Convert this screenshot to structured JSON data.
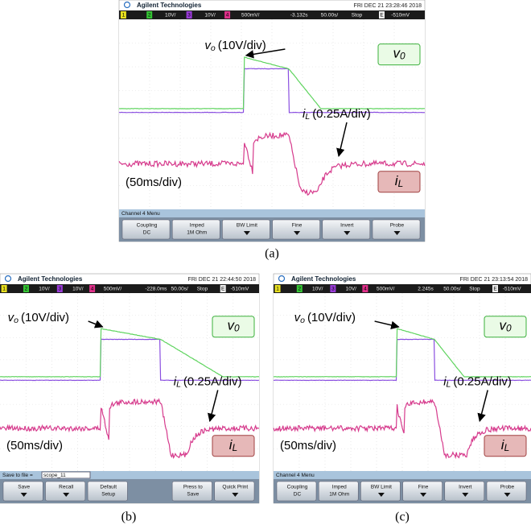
{
  "figure": {
    "panels": [
      {
        "caption": "(a)",
        "brand": "Agilent Technologies",
        "datetime": "FRI DEC 21 23:28:46 2018",
        "status": [
          "1",
          "2",
          "10V/",
          "3",
          "10V/",
          "4",
          "500mV/",
          "-3.132s",
          "50.00s/",
          "Stop",
          "E",
          "-510mV"
        ],
        "vo_label": {
          "symbol": "v",
          "sub": "o",
          "scale": "(10V/div)"
        },
        "il_label": {
          "symbol": "i",
          "sub": "L",
          "scale": "(0.25A/div)"
        },
        "time_label": "(50ms/div)",
        "legend_v": {
          "symbol": "v",
          "sub": "0"
        },
        "legend_i": {
          "symbol": "i",
          "sub": "L"
        },
        "menu_title": "Channel 4 Menu",
        "buttons": [
          {
            "label": "Coupling",
            "value": "DC"
          },
          {
            "label": "Imped",
            "value": "1M Ohm"
          },
          {
            "label": "BW Limit"
          },
          {
            "label": "Fine"
          },
          {
            "label": "Invert"
          },
          {
            "label": "Probe"
          }
        ]
      },
      {
        "caption": "(b)",
        "brand": "Agilent Technologies",
        "datetime": "FRI DEC 21 22:44:50 2018",
        "status": [
          "1",
          "2",
          "10V/",
          "3",
          "10V/",
          "4",
          "500mV/",
          "-228.0ms",
          "50.00s/",
          "Stop",
          "E",
          "-510mV"
        ],
        "vo_label": {
          "symbol": "v",
          "sub": "o",
          "scale": "(10V/div)"
        },
        "il_label": {
          "symbol": "i",
          "sub": "L",
          "scale": "(0.25A/div)"
        },
        "time_label": "(50ms/div)",
        "legend_v": {
          "symbol": "v",
          "sub": "0"
        },
        "legend_i": {
          "symbol": "i",
          "sub": "L"
        },
        "menu_title": "Save to file =",
        "menu_field": "scope_11",
        "buttons": [
          {
            "label": "Save"
          },
          {
            "label": "Recall"
          },
          {
            "label": "Default",
            "value": "Setup"
          },
          {
            "label": "Press to",
            "value": "Save"
          },
          {
            "label": "Quick Print"
          }
        ]
      },
      {
        "caption": "(c)",
        "brand": "Agilent Technologies",
        "datetime": "FRI DEC 21 23:13:54 2018",
        "status": [
          "1",
          "2",
          "10V/",
          "3",
          "10V/",
          "4",
          "500mV/",
          "2.245s",
          "50.00s/",
          "Stop",
          "E",
          "-510mV"
        ],
        "vo_label": {
          "symbol": "v",
          "sub": "o",
          "scale": "(10V/div)"
        },
        "il_label": {
          "symbol": "i",
          "sub": "L",
          "scale": "(0.25A/div)"
        },
        "time_label": "(50ms/div)",
        "legend_v": {
          "symbol": "v",
          "sub": "0"
        },
        "legend_i": {
          "symbol": "i",
          "sub": "L"
        },
        "menu_title": "Channel 4 Menu",
        "buttons": [
          {
            "label": "Coupling",
            "value": "DC"
          },
          {
            "label": "Imped",
            "value": "1M Ohm"
          },
          {
            "label": "BW Limit"
          },
          {
            "label": "Fine"
          },
          {
            "label": "Invert"
          },
          {
            "label": "Probe"
          }
        ]
      }
    ]
  }
}
